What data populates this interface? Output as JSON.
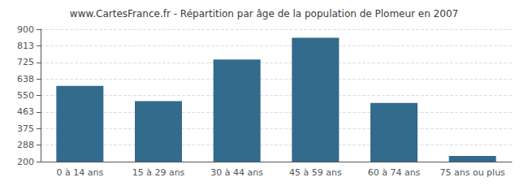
{
  "chart_data": {
    "type": "bar",
    "title": "www.CartesFrance.fr - Répartition par âge de la population de Plomeur en 2007",
    "categories": [
      "0 à 14 ans",
      "15 à 29 ans",
      "30 à 44 ans",
      "45 à 59 ans",
      "60 à 74 ans",
      "75 ans ou plus"
    ],
    "values": [
      600,
      520,
      740,
      855,
      510,
      230
    ],
    "color": "#336b8c",
    "ylim": [
      200,
      900
    ],
    "yticks": [
      200,
      288,
      375,
      463,
      550,
      638,
      725,
      813,
      900
    ],
    "grid": true
  }
}
